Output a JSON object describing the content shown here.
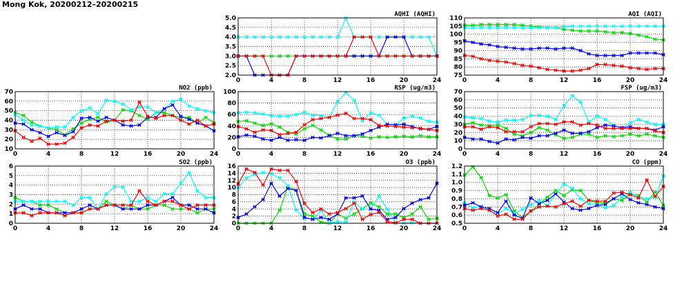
{
  "title": "Mong Kok, 20200212–20200215",
  "chart_data": [
    {
      "type": "line",
      "title": "AQHI (AQHI)",
      "ylim": [
        2,
        5
      ],
      "yticks": [
        "2.0",
        "2.5",
        "3.0",
        "3.5",
        "4.0",
        "4.5",
        "5.0"
      ],
      "xlim": [
        0,
        24
      ],
      "xticks": [
        "0",
        "4",
        "8",
        "12",
        "16",
        "20",
        "24"
      ],
      "grid": true,
      "series": [
        {
          "color": "#00e000",
          "values": [
            3,
            3,
            3,
            3,
            3,
            3,
            3,
            3,
            3,
            3,
            3,
            3,
            3,
            3,
            3,
            3,
            3,
            3,
            3,
            3,
            3,
            3,
            3,
            3,
            3
          ]
        },
        {
          "color": "#00ffff",
          "values": [
            4,
            4,
            4,
            4,
            4,
            4,
            4,
            4,
            4,
            4,
            4,
            4,
            4,
            5,
            4,
            4,
            4,
            4,
            4,
            4,
            4,
            4,
            4,
            4,
            3
          ]
        },
        {
          "color": "#0000ff",
          "values": [
            3,
            3,
            2,
            2,
            2,
            2,
            2,
            3,
            3,
            3,
            3,
            3,
            3,
            3,
            3,
            3,
            3,
            3,
            4,
            4,
            4,
            3,
            3,
            3,
            3
          ]
        },
        {
          "color": "#ff0000",
          "values": [
            3,
            3,
            3,
            3,
            2,
            2,
            2,
            3,
            3,
            3,
            3,
            3,
            3,
            3,
            4,
            4,
            4,
            3,
            3,
            3,
            3,
            3,
            3,
            3,
            3
          ]
        }
      ]
    },
    {
      "type": "line",
      "title": "AQI (AQI)",
      "ylim": [
        75,
        110
      ],
      "yticks": [
        "75",
        "80",
        "85",
        "90",
        "95",
        "100",
        "105",
        "110"
      ],
      "xlim": [
        0,
        24
      ],
      "xticks": [
        "0",
        "4",
        "8",
        "12",
        "16",
        "20",
        "24"
      ],
      "grid": true,
      "series": [
        {
          "color": "#00e000",
          "values": [
            105.5,
            105.5,
            106,
            106,
            106,
            106,
            106,
            105.5,
            105,
            104.5,
            104,
            104,
            103,
            102.5,
            102,
            102,
            102,
            101.5,
            101,
            101,
            100.5,
            99.5,
            98.5,
            97,
            96.5
          ]
        },
        {
          "color": "#00ffff",
          "values": [
            104,
            104,
            104,
            104,
            104,
            104,
            104,
            104,
            104,
            104,
            104,
            104,
            104.5,
            105,
            105,
            105,
            105,
            105,
            105,
            105,
            105,
            105,
            105,
            105,
            105
          ]
        },
        {
          "color": "#0000ff",
          "values": [
            96,
            95,
            94,
            93.5,
            92.5,
            92,
            91.5,
            91,
            91,
            91.5,
            91.5,
            91,
            91.5,
            91.5,
            90,
            88,
            87,
            87,
            87,
            87,
            88.5,
            88.5,
            88.5,
            88.5,
            87.5
          ]
        },
        {
          "color": "#ff0000",
          "values": [
            87,
            86.5,
            85,
            84,
            83.5,
            83,
            82,
            81,
            80.5,
            79.5,
            78.5,
            78,
            77.5,
            77.5,
            78,
            79,
            81.5,
            81.5,
            81,
            80.5,
            79.5,
            79,
            78.5,
            79,
            79
          ]
        }
      ]
    },
    {
      "type": "line",
      "title": "NO2 (ppb)",
      "ylim": [
        10,
        70
      ],
      "yticks": [
        "10",
        "20",
        "30",
        "40",
        "50",
        "60",
        "70"
      ],
      "xlim": [
        0,
        24
      ],
      "xticks": [
        "0",
        "4",
        "8",
        "12",
        "16",
        "20",
        "24"
      ],
      "grid": true,
      "series": [
        {
          "color": "#00e000",
          "values": [
            48,
            45,
            38,
            34,
            32,
            30,
            25,
            31,
            37,
            41,
            43,
            38,
            40,
            51,
            50,
            45,
            41,
            48,
            48,
            45,
            43,
            43,
            37,
            43,
            37
          ]
        },
        {
          "color": "#00ffff",
          "values": [
            46,
            40,
            35,
            34,
            32,
            33,
            33,
            43,
            50,
            53,
            47,
            61,
            60,
            57,
            51,
            54,
            54,
            48,
            52,
            60,
            62,
            55,
            52,
            50,
            48
          ]
        },
        {
          "color": "#0000ff",
          "values": [
            37,
            36,
            30,
            27,
            23,
            27,
            24,
            28,
            42,
            43,
            39,
            43,
            40,
            35,
            34,
            35,
            43,
            43,
            52,
            56,
            44,
            41,
            37,
            34,
            29
          ]
        },
        {
          "color": "#ff0000",
          "values": [
            29,
            22,
            18,
            21,
            15,
            15,
            16,
            22,
            32,
            35,
            34,
            39,
            40,
            39,
            40,
            59,
            44,
            42,
            45,
            45,
            40,
            36,
            40,
            34,
            36
          ]
        }
      ]
    },
    {
      "type": "line",
      "title": "RSP (ug/m3)",
      "ylim": [
        0,
        100
      ],
      "yticks": [
        "0",
        "20",
        "40",
        "60",
        "80",
        "100"
      ],
      "xlim": [
        0,
        24
      ],
      "xticks": [
        "0",
        "4",
        "8",
        "12",
        "16",
        "20",
        "24"
      ],
      "grid": true,
      "series": [
        {
          "color": "#00e000",
          "values": [
            48,
            49,
            45,
            41,
            44,
            38,
            29,
            26,
            35,
            41,
            33,
            24,
            17,
            17,
            23,
            22,
            19,
            21,
            20,
            21,
            22,
            21,
            23,
            21,
            21
          ]
        },
        {
          "color": "#00ffff",
          "values": [
            63,
            64,
            63,
            61,
            58,
            57,
            57,
            60,
            64,
            59,
            58,
            55,
            83,
            98,
            85,
            49,
            63,
            59,
            43,
            42,
            54,
            57,
            54,
            48,
            47
          ]
        },
        {
          "color": "#0000ff",
          "values": [
            21,
            24,
            22,
            17,
            15,
            20,
            15,
            16,
            15,
            20,
            19,
            23,
            27,
            23,
            23,
            26,
            32,
            38,
            43,
            42,
            43,
            39,
            35,
            34,
            39
          ]
        },
        {
          "color": "#ff0000",
          "values": [
            39,
            35,
            29,
            33,
            32,
            25,
            27,
            29,
            42,
            51,
            53,
            55,
            59,
            62,
            53,
            53,
            51,
            41,
            40,
            39,
            38,
            37,
            36,
            34,
            32
          ]
        }
      ]
    },
    {
      "type": "line",
      "title": "FSP (ug/m3)",
      "ylim": [
        0,
        70
      ],
      "yticks": [
        "0",
        "10",
        "20",
        "30",
        "40",
        "50",
        "60",
        "70"
      ],
      "xlim": [
        0,
        24
      ],
      "xticks": [
        "0",
        "4",
        "8",
        "12",
        "16",
        "20",
        "24"
      ],
      "grid": true,
      "series": [
        {
          "color": "#00e000",
          "values": [
            30,
            32,
            29,
            28,
            29,
            25,
            18,
            16,
            20,
            26,
            23,
            17,
            13,
            14,
            18,
            18,
            14,
            16,
            15,
            16,
            18,
            16,
            18,
            16,
            14
          ]
        },
        {
          "color": "#00ffff",
          "values": [
            39,
            38,
            37,
            34,
            33,
            35,
            35,
            36,
            41,
            41,
            40,
            36,
            53,
            65,
            57,
            33,
            40,
            36,
            29,
            25,
            32,
            36,
            33,
            30,
            30
          ]
        },
        {
          "color": "#0000ff",
          "values": [
            14,
            12,
            12,
            9,
            7,
            12,
            11,
            14,
            13,
            16,
            16,
            19,
            23,
            19,
            19,
            21,
            26,
            29,
            28,
            26,
            27,
            25,
            25,
            23,
            27
          ]
        },
        {
          "color": "#ff0000",
          "values": [
            27,
            27,
            24,
            27,
            26,
            21,
            21,
            21,
            27,
            31,
            31,
            30,
            33,
            33,
            29,
            31,
            29,
            25,
            25,
            25,
            25,
            25,
            25,
            22,
            20
          ]
        }
      ]
    },
    {
      "type": "line",
      "title": "SO2 (ppb)",
      "ylim": [
        0,
        6
      ],
      "yticks": [
        "0",
        "1",
        "2",
        "3",
        "4",
        "5",
        "6"
      ],
      "xlim": [
        0,
        24
      ],
      "xticks": [
        "0",
        "4",
        "8",
        "12",
        "16",
        "20",
        "24"
      ],
      "grid": true,
      "series": [
        {
          "color": "#00e000",
          "values": [
            2.7,
            2.3,
            2.3,
            1.9,
            1.9,
            1.5,
            1.1,
            1.1,
            1.1,
            1.5,
            1.5,
            2.3,
            1.9,
            1.5,
            1.9,
            1.5,
            1.5,
            1.9,
            1.9,
            1.5,
            1.5,
            1.5,
            1.1,
            1.5,
            1.5
          ]
        },
        {
          "color": "#00ffff",
          "values": [
            2.3,
            2.3,
            2.3,
            2.3,
            2.3,
            2.3,
            2.3,
            1.9,
            2.7,
            2.7,
            1.5,
            3.1,
            3.8,
            3.8,
            2.3,
            2.3,
            2.7,
            2.3,
            3.1,
            3.1,
            4.2,
            5.3,
            3.4,
            2.7,
            2.7
          ]
        },
        {
          "color": "#0000ff",
          "values": [
            1.5,
            1.9,
            1.5,
            1.5,
            1.1,
            1.1,
            1.1,
            1.1,
            1.5,
            1.9,
            1.5,
            1.9,
            1.9,
            1.5,
            1.5,
            1.5,
            1.9,
            1.9,
            2.3,
            2.7,
            1.9,
            1.9,
            1.5,
            1.5,
            1.1
          ]
        },
        {
          "color": "#ff0000",
          "values": [
            1.1,
            1.1,
            0.8,
            1.1,
            1.1,
            1.1,
            0.8,
            1.1,
            1.1,
            1.5,
            1.5,
            1.9,
            1.9,
            1.9,
            1.9,
            3.4,
            2.3,
            1.9,
            2.3,
            2.3,
            1.9,
            1.5,
            1.9,
            1.9,
            1.9
          ]
        }
      ]
    },
    {
      "type": "line",
      "title": "O3 (ppb)",
      "ylim": [
        0,
        16
      ],
      "yticks": [
        "0",
        "2",
        "4",
        "6",
        "8",
        "10",
        "12",
        "14",
        "16"
      ],
      "xlim": [
        0,
        24
      ],
      "xticks": [
        "0",
        "4",
        "8",
        "12",
        "16",
        "20",
        "24"
      ],
      "grid": true,
      "series": [
        {
          "color": "#00e000",
          "values": [
            0,
            0,
            0,
            0,
            0,
            3.6,
            10.2,
            9.2,
            2.6,
            2,
            0.3,
            0,
            2.6,
            1.4,
            2.6,
            4.1,
            5.6,
            4.6,
            2.6,
            2.6,
            1.6,
            2.6,
            4.6,
            1.1,
            1.4
          ]
        },
        {
          "color": "#00ffff",
          "values": [
            10,
            12.7,
            13.7,
            14.2,
            13.8,
            12.7,
            10.5,
            3.6,
            1.4,
            1.2,
            3.6,
            0.1,
            0.4,
            0.4,
            6,
            4,
            4,
            7.6,
            4,
            0.2,
            0,
            0.2,
            0,
            0,
            0
          ]
        },
        {
          "color": "#0000ff",
          "values": [
            1.6,
            2.6,
            4.6,
            6.6,
            11.2,
            7.6,
            9.7,
            9.2,
            1.6,
            1.1,
            1.6,
            1.1,
            2.6,
            7.1,
            7.1,
            7.6,
            4,
            3.6,
            1.1,
            1.6,
            4.1,
            5.6,
            6.6,
            7.1,
            11.2
          ]
        },
        {
          "color": "#ff0000",
          "values": [
            11,
            15.2,
            14.2,
            10.7,
            15.2,
            14.8,
            14.8,
            11.7,
            5.5,
            3,
            4,
            2.6,
            3,
            4.1,
            5.6,
            1.1,
            2.5,
            3,
            0.5,
            0.1,
            1.1,
            1.1,
            0,
            0,
            0
          ]
        }
      ]
    },
    {
      "type": "line",
      "title": "CO (ppm)",
      "ylim": [
        0.5,
        1.2
      ],
      "yticks": [
        "0.5",
        "0.6",
        "0.7",
        "0.8",
        "0.9",
        "1.0",
        "1.1",
        "1.2"
      ],
      "xlim": [
        0,
        24
      ],
      "xticks": [
        "0",
        "4",
        "8",
        "12",
        "16",
        "20",
        "24"
      ],
      "grid": true,
      "series": [
        {
          "color": "#00e000",
          "values": [
            1.09,
            1.19,
            1.06,
            0.84,
            0.81,
            0.85,
            0.65,
            0.57,
            0.65,
            0.73,
            0.82,
            0.9,
            0.84,
            0.91,
            0.9,
            0.78,
            0.75,
            0.75,
            0.8,
            0.78,
            0.86,
            0.84,
            0.76,
            0.88,
            0.72
          ]
        },
        {
          "color": "#00ffff",
          "values": [
            0.75,
            0.69,
            0.71,
            0.65,
            0.62,
            0.68,
            0.62,
            0.67,
            0.73,
            0.78,
            0.72,
            0.86,
            0.98,
            0.93,
            0.8,
            0.74,
            0.73,
            0.69,
            0.72,
            0.82,
            0.88,
            0.82,
            0.8,
            0.82,
            1.08
          ]
        },
        {
          "color": "#0000ff",
          "values": [
            0.72,
            0.75,
            0.7,
            0.68,
            0.63,
            0.77,
            0.6,
            0.56,
            0.81,
            0.74,
            0.78,
            0.86,
            0.76,
            0.68,
            0.66,
            0.68,
            0.72,
            0.73,
            0.8,
            0.86,
            0.79,
            0.75,
            0.73,
            0.7,
            0.68
          ]
        },
        {
          "color": "#ff0000",
          "values": [
            0.68,
            0.66,
            0.68,
            0.66,
            0.59,
            0.61,
            0.55,
            0.55,
            0.65,
            0.7,
            0.71,
            0.7,
            0.74,
            0.77,
            0.71,
            0.78,
            0.77,
            0.77,
            0.87,
            0.88,
            0.85,
            0.81,
            1.03,
            0.83,
            0.95
          ]
        }
      ]
    }
  ]
}
